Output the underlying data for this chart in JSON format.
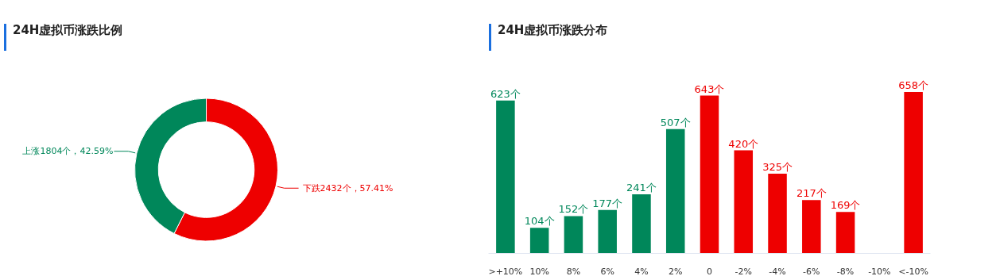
{
  "chart_data": [
    {
      "type": "donut",
      "title": "24H虚拟币涨跌比例",
      "categories": [
        "下跌",
        "上涨"
      ],
      "values": [
        2432,
        1804
      ],
      "colors": [
        "#ee0000",
        "#00875a"
      ],
      "value_labels": [
        "2432个，57.41%",
        "1804个，42.59%"
      ]
    },
    {
      "type": "bar",
      "title": "24H虚拟币涨跌分布",
      "categories": [
        ">+10%",
        "10%",
        "8%",
        "6%",
        "4%",
        "2%",
        "0",
        "-2%",
        "-4%",
        "-6%",
        "-8%",
        "-10%",
        "<-10%"
      ],
      "values": [
        623,
        104,
        152,
        177,
        241,
        507,
        643,
        420,
        325,
        217,
        169,
        null,
        658
      ],
      "colors": [
        "#00875a",
        "#00875a",
        "#00875a",
        "#00875a",
        "#00875a",
        "#00875a",
        "#ee0000",
        "#ee0000",
        "#ee0000",
        "#ee0000",
        "#ee0000",
        "#ee0000",
        "#ee0000"
      ],
      "value_labels": [
        "623个",
        "104个",
        "152个",
        "177个",
        "241个",
        "507个",
        "643个",
        "420个",
        "325个",
        "217个",
        "169个",
        null,
        "658个"
      ],
      "tick_labels": "x",
      "grid": false
    }
  ]
}
